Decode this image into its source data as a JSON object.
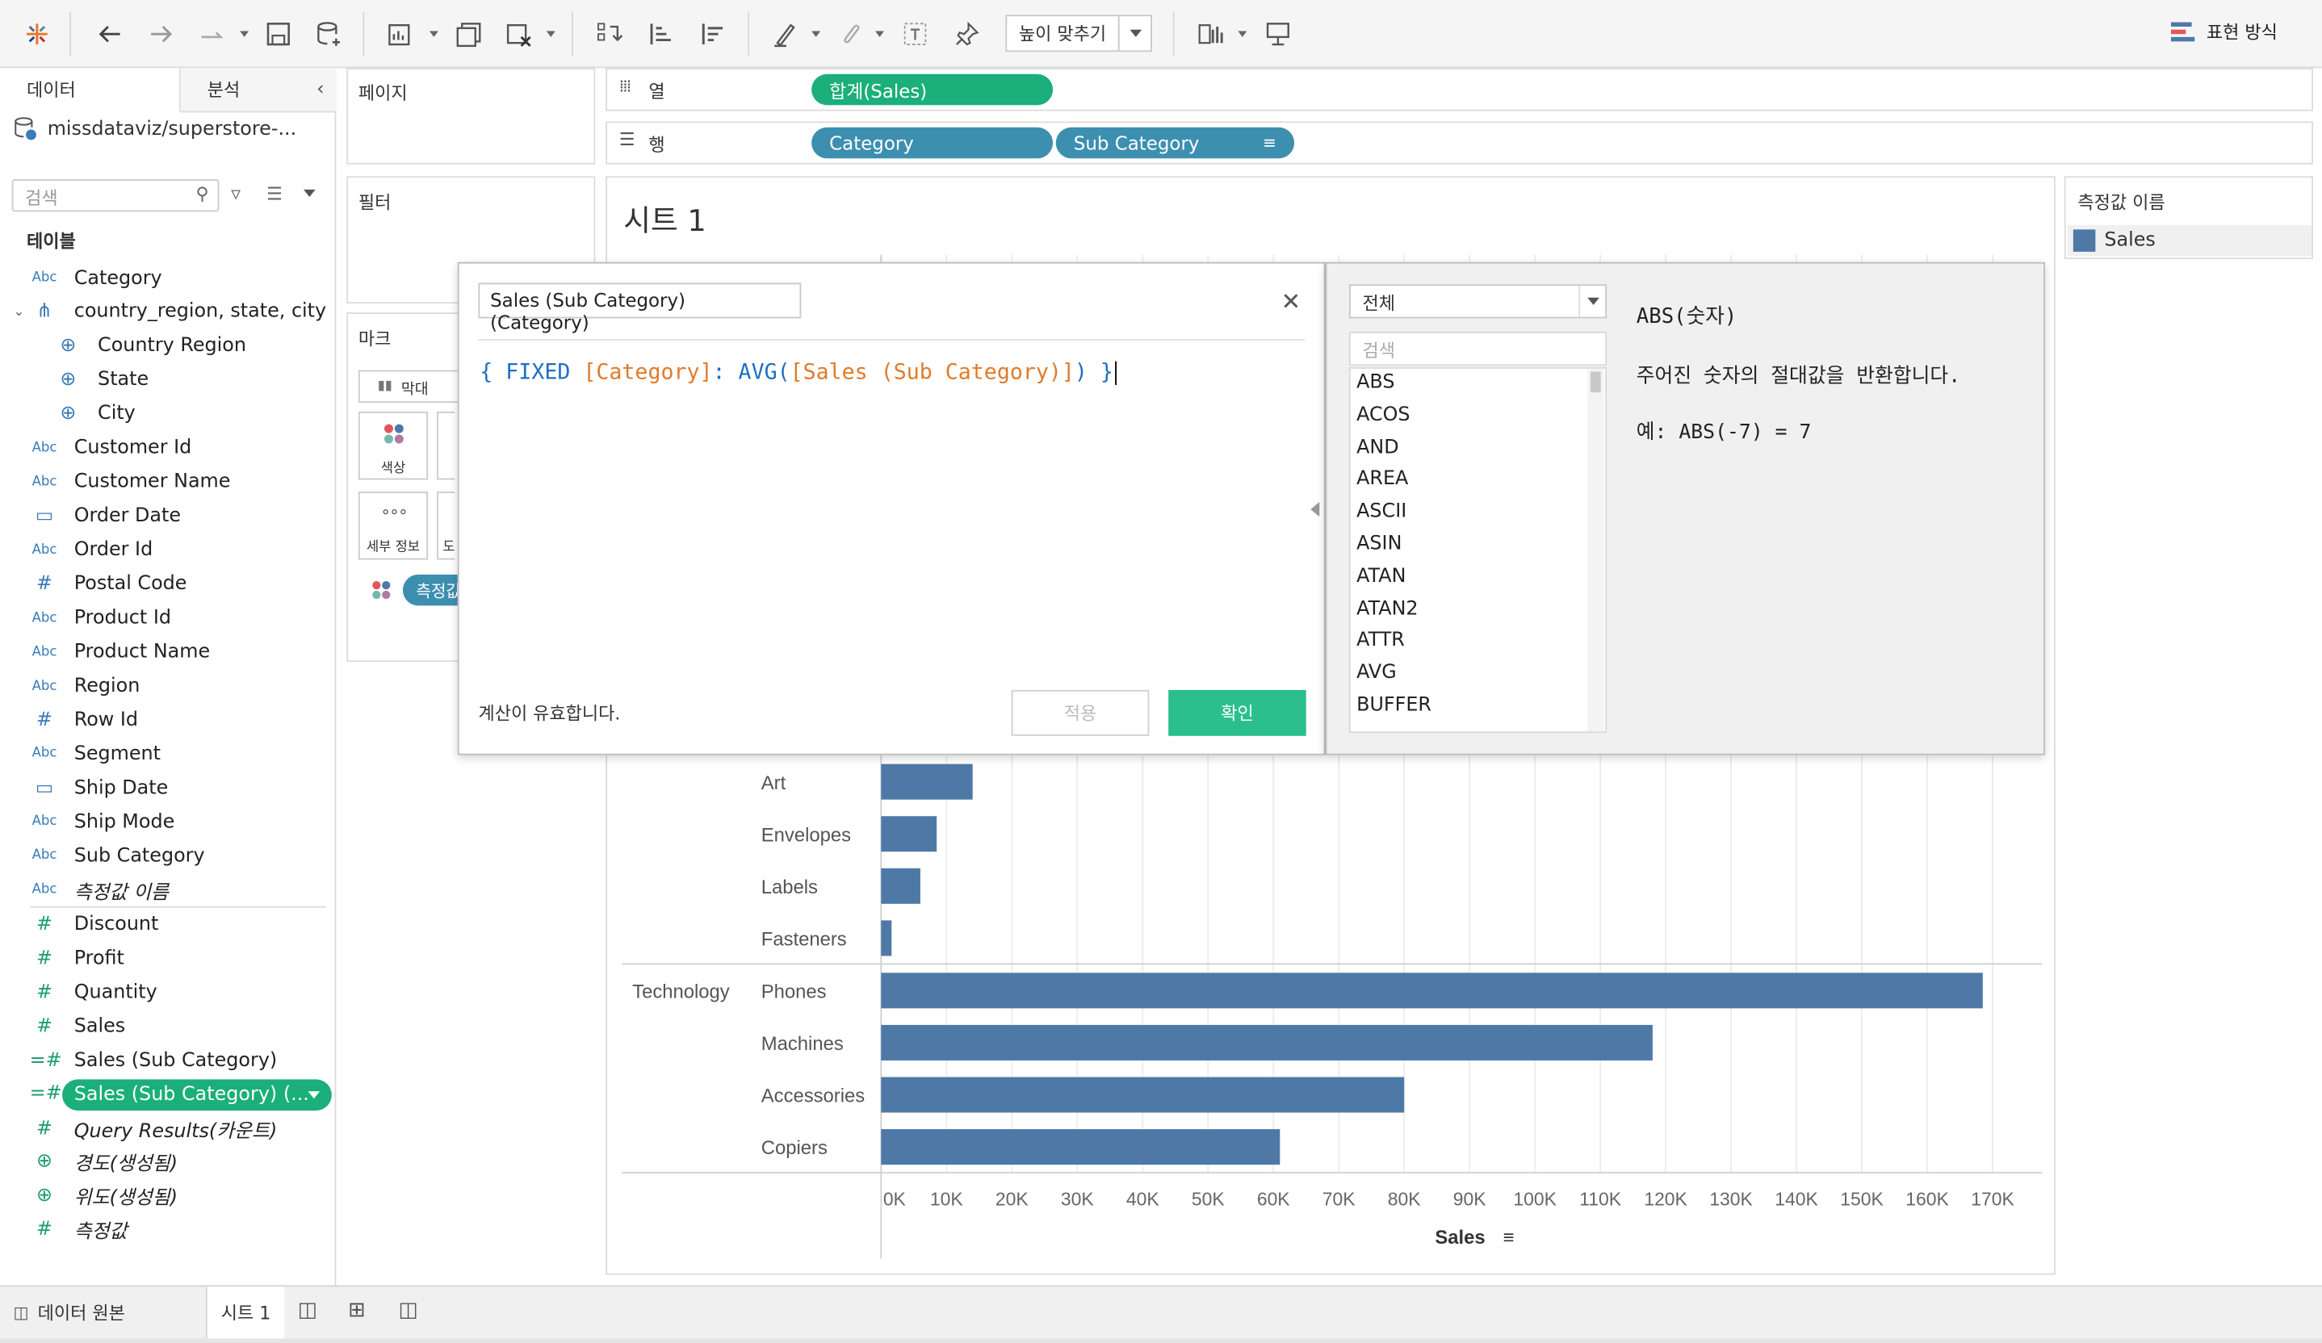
{
  "toolbar": {
    "fit_label": "높이 맞추기",
    "show_me_label": "표현 방식"
  },
  "left_pane": {
    "tab_data": "데이터",
    "tab_analysis": "분석",
    "datasource": "missdataviz/superstore-...",
    "search_placeholder": "검색",
    "tables_header": "테이블",
    "fields": [
      {
        "icon": "Abc",
        "name": "Category"
      },
      {
        "icon": "hier",
        "name": "country_region, state, city"
      },
      {
        "icon": "globe",
        "name": "Country Region",
        "sub": true
      },
      {
        "icon": "globe",
        "name": "State",
        "sub": true
      },
      {
        "icon": "globe",
        "name": "City",
        "sub": true
      },
      {
        "icon": "Abc",
        "name": "Customer Id"
      },
      {
        "icon": "Abc",
        "name": "Customer Name"
      },
      {
        "icon": "date",
        "name": "Order Date"
      },
      {
        "icon": "Abc",
        "name": "Order Id"
      },
      {
        "icon": "#",
        "name": "Postal Code"
      },
      {
        "icon": "Abc",
        "name": "Product Id"
      },
      {
        "icon": "Abc",
        "name": "Product Name"
      },
      {
        "icon": "Abc",
        "name": "Region"
      },
      {
        "icon": "#",
        "name": "Row Id"
      },
      {
        "icon": "Abc",
        "name": "Segment"
      },
      {
        "icon": "date",
        "name": "Ship Date"
      },
      {
        "icon": "Abc",
        "name": "Ship Mode"
      },
      {
        "icon": "Abc",
        "name": "Sub Category"
      },
      {
        "icon": "Abc",
        "name": "측정값 이름",
        "italic": true
      },
      {
        "icon": "m#",
        "name": "Discount",
        "measure": true
      },
      {
        "icon": "m#",
        "name": "Profit",
        "measure": true
      },
      {
        "icon": "m#",
        "name": "Quantity",
        "measure": true
      },
      {
        "icon": "m#",
        "name": "Sales",
        "measure": true
      },
      {
        "icon": "=#",
        "name": "Sales (Sub Category)",
        "measure": true
      },
      {
        "icon": "=#",
        "name": "Sales (Sub Category) (...",
        "measure": true,
        "selected": true
      },
      {
        "icon": "m#",
        "name": "Query Results(카운트)",
        "measure": true,
        "italic": true
      },
      {
        "icon": "mglobe",
        "name": "경도(생성됨)",
        "measure": true,
        "italic": true
      },
      {
        "icon": "mglobe",
        "name": "위도(생성됨)",
        "measure": true,
        "italic": true
      },
      {
        "icon": "m#",
        "name": "측정값",
        "measure": true,
        "italic": true
      }
    ]
  },
  "shelves": {
    "pages_label": "페이지",
    "filters_label": "필터",
    "marks_label": "마크",
    "mark_type": "막대",
    "color_label": "색상",
    "detail_label": "세부 정보",
    "tooltip_label": "도",
    "measure_pill": "측정값",
    "columns_label": "열",
    "rows_label": "행",
    "columns_pill": "합계(Sales)",
    "rows_pill_1": "Category",
    "rows_pill_2": "Sub Category"
  },
  "sheet": {
    "title": "시트 1"
  },
  "legend": {
    "title": "측정값 이름",
    "item": "Sales",
    "item_color": "#4e79a7"
  },
  "calc_dialog": {
    "name": "Sales (Sub Category) (Category)",
    "formula_parts": [
      "{ FIXED ",
      "[Category]",
      ": AVG(",
      "[Sales (Sub Category)]",
      ") }"
    ],
    "status": "계산이 유효합니다.",
    "apply_label": "적용",
    "ok_label": "확인"
  },
  "func_panel": {
    "dropdown": "전체",
    "search_placeholder": "검색",
    "functions": [
      "ABS",
      "ACOS",
      "AND",
      "AREA",
      "ASCII",
      "ASIN",
      "ATAN",
      "ATAN2",
      "ATTR",
      "AVG",
      "BUFFER"
    ],
    "help_title": "ABS(숫자)",
    "help_desc": "주어진 숫자의 절대값을 반환합니다.",
    "help_example": "예: ABS(-7) = 7"
  },
  "chart_data": {
    "type": "bar",
    "orientation": "horizontal",
    "xlabel": "Sales",
    "xlim": [
      0,
      175000
    ],
    "x_ticks": [
      "0K",
      "10K",
      "20K",
      "30K",
      "40K",
      "50K",
      "60K",
      "70K",
      "80K",
      "90K",
      "100K",
      "110K",
      "120K",
      "130K",
      "140K",
      "150K",
      "160K",
      "170K"
    ],
    "groups": [
      {
        "category": "",
        "sub_categories": [
          "Art",
          "Envelopes",
          "Labels",
          "Fasteners"
        ],
        "values": [
          14000,
          8500,
          6000,
          1600
        ]
      },
      {
        "category": "Technology",
        "sub_categories": [
          "Phones",
          "Machines",
          "Accessories",
          "Copiers"
        ],
        "values": [
          168500,
          118000,
          80000,
          61000
        ]
      }
    ],
    "bar_color": "#4e79a7",
    "grid": true
  },
  "bottom": {
    "data_source_tab": "데이터 원본",
    "sheet_tab": "시트 1"
  }
}
